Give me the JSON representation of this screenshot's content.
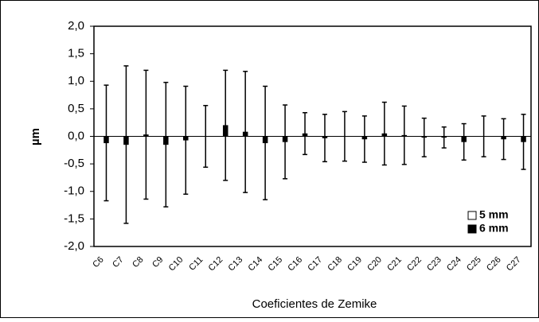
{
  "chart_data": {
    "type": "bar",
    "ylabel": "µm",
    "xlabel": "Coeficientes de Zemike",
    "categories": [
      "C6",
      "C7",
      "C8",
      "C9",
      "C10",
      "C11",
      "C12",
      "C13",
      "C14",
      "C15",
      "C16",
      "C17",
      "C18",
      "C19",
      "C20",
      "C21",
      "C22",
      "C23",
      "C24",
      "C25",
      "C26",
      "C27"
    ],
    "series": [
      {
        "name": "5 mm",
        "color": "#ffffff",
        "values": [
          0,
          0,
          0,
          0,
          0,
          0,
          0,
          0,
          0,
          0,
          0,
          0,
          0,
          0,
          0,
          0,
          0,
          0,
          0,
          0,
          0,
          0
        ]
      },
      {
        "name": "6 mm",
        "color": "#000000",
        "values": [
          -0.12,
          -0.15,
          0.03,
          -0.15,
          -0.07,
          0,
          0.2,
          0.08,
          -0.12,
          -0.1,
          0.05,
          -0.03,
          0,
          -0.05,
          0.05,
          0.02,
          -0.02,
          -0.02,
          -0.1,
          0,
          -0.05,
          -0.1
        ],
        "errors": [
          1.05,
          1.43,
          1.17,
          1.13,
          0.98,
          0.56,
          1.0,
          1.1,
          1.03,
          0.67,
          0.38,
          0.43,
          0.45,
          0.42,
          0.57,
          0.53,
          0.35,
          0.19,
          0.33,
          0.37,
          0.37,
          0.5
        ]
      }
    ],
    "ylim": [
      -2,
      2
    ],
    "yticks": [
      {
        "value": 2,
        "label": "2,0"
      },
      {
        "value": 1.5,
        "label": "1,5"
      },
      {
        "value": 1,
        "label": "1,0"
      },
      {
        "value": 0.5,
        "label": "0,5"
      },
      {
        "value": 0,
        "label": "0,0"
      },
      {
        "value": -0.5,
        "label": "-0,5"
      },
      {
        "value": -1,
        "label": "-1,0"
      },
      {
        "value": -1.5,
        "label": "-1,5"
      },
      {
        "value": -2,
        "label": "-2,0"
      }
    ],
    "legend": "lower right"
  }
}
